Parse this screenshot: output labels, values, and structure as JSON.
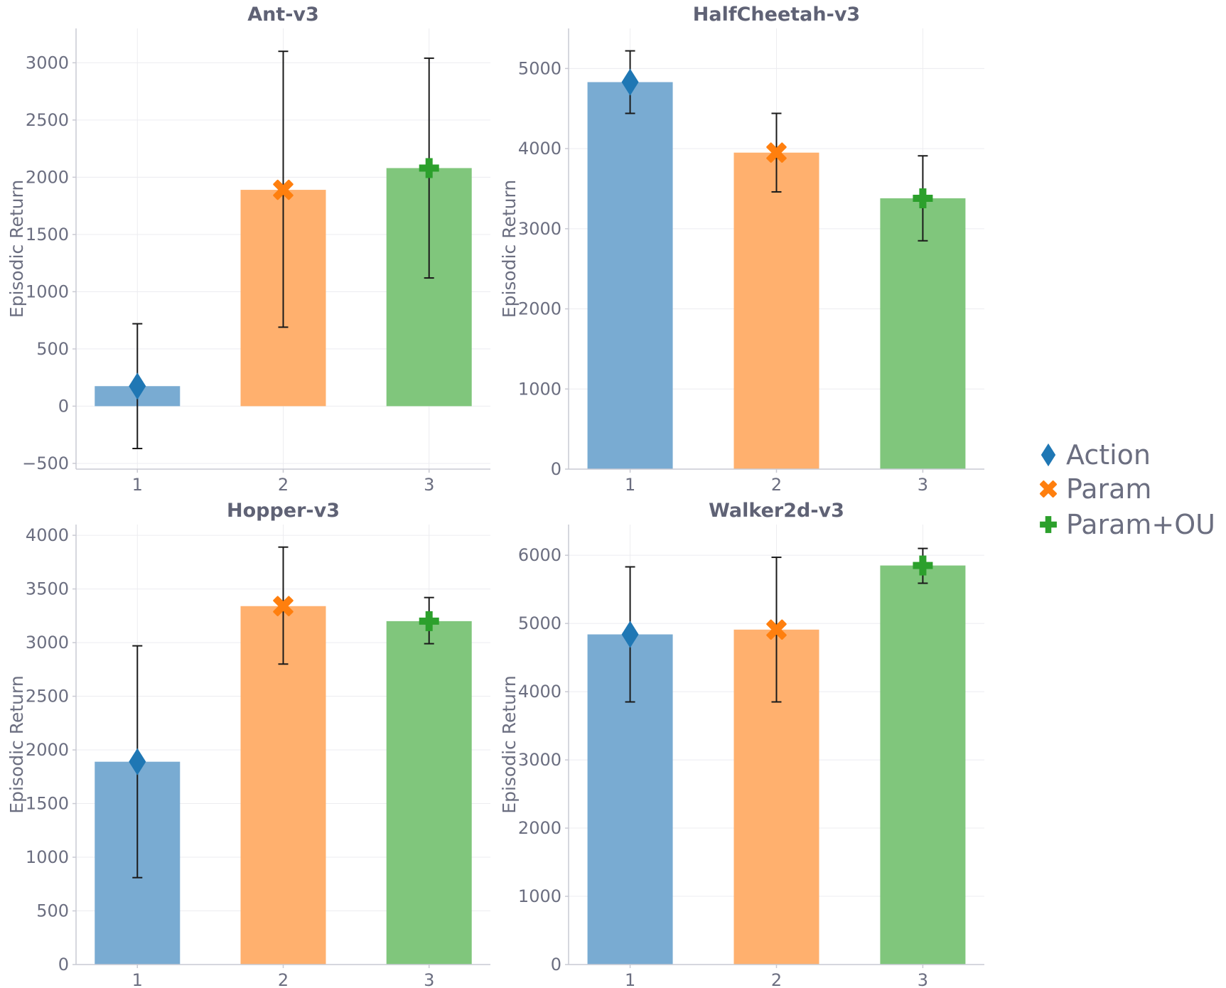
{
  "chart_data": [
    {
      "type": "bar",
      "title": "Ant-v3",
      "xlabel": "",
      "ylabel": "Episodic Return",
      "categories": [
        "1",
        "2",
        "3"
      ],
      "values": [
        175,
        1890,
        2080
      ],
      "error_low": [
        -370,
        690,
        1120
      ],
      "error_high": [
        720,
        3100,
        3040
      ],
      "ylim": [
        -550,
        3300
      ],
      "yticks": [
        -500,
        0,
        500,
        1000,
        1500,
        2000,
        2500,
        3000
      ],
      "ytick_labels": [
        "−500",
        "0",
        "500",
        "1000",
        "1500",
        "2000",
        "2500",
        "3000"
      ]
    },
    {
      "type": "bar",
      "title": "HalfCheetah-v3",
      "xlabel": "",
      "ylabel": "Episodic Return",
      "categories": [
        "1",
        "2",
        "3"
      ],
      "values": [
        4830,
        3950,
        3380
      ],
      "error_low": [
        4440,
        3460,
        2850
      ],
      "error_high": [
        5220,
        4440,
        3910
      ],
      "ylim": [
        0,
        5500
      ],
      "yticks": [
        0,
        1000,
        2000,
        3000,
        4000,
        5000
      ],
      "ytick_labels": [
        "0",
        "1000",
        "2000",
        "3000",
        "4000",
        "5000"
      ]
    },
    {
      "type": "bar",
      "title": "Hopper-v3",
      "xlabel": "",
      "ylabel": "Episodic Return",
      "categories": [
        "1",
        "2",
        "3"
      ],
      "values": [
        1890,
        3340,
        3200
      ],
      "error_low": [
        810,
        2800,
        2990
      ],
      "error_high": [
        2970,
        3890,
        3420
      ],
      "ylim": [
        0,
        4100
      ],
      "yticks": [
        0,
        500,
        1000,
        1500,
        2000,
        2500,
        3000,
        3500,
        4000
      ],
      "ytick_labels": [
        "0",
        "500",
        "1000",
        "1500",
        "2000",
        "2500",
        "3000",
        "3500",
        "4000"
      ]
    },
    {
      "type": "bar",
      "title": "Walker2d-v3",
      "xlabel": "",
      "ylabel": "Episodic Return",
      "categories": [
        "1",
        "2",
        "3"
      ],
      "values": [
        4840,
        4910,
        5850
      ],
      "error_low": [
        3850,
        3850,
        5590
      ],
      "error_high": [
        5830,
        5970,
        6100
      ],
      "ylim": [
        0,
        6450
      ],
      "yticks": [
        0,
        1000,
        2000,
        3000,
        4000,
        5000,
        6000
      ],
      "ytick_labels": [
        "0",
        "1000",
        "2000",
        "3000",
        "4000",
        "5000",
        "6000"
      ]
    }
  ],
  "legend": {
    "entries": [
      {
        "label": "Action",
        "marker": "diamond",
        "color": "#1f77b4"
      },
      {
        "label": "Param",
        "marker": "x",
        "color": "#ff7f0e"
      },
      {
        "label": "Param+OU",
        "marker": "plus",
        "color": "#2ca02c"
      }
    ]
  },
  "colors": {
    "bars": [
      "#79abd2",
      "#ffb06e",
      "#80c67c"
    ],
    "markers": [
      "#1f77b4",
      "#ff7f0e",
      "#2ca02c"
    ],
    "markers_kind": [
      "diamond",
      "x",
      "plus"
    ],
    "grid": "#ececf0",
    "axis": "#c9cad3",
    "errorbar": "#1a1a1a"
  }
}
